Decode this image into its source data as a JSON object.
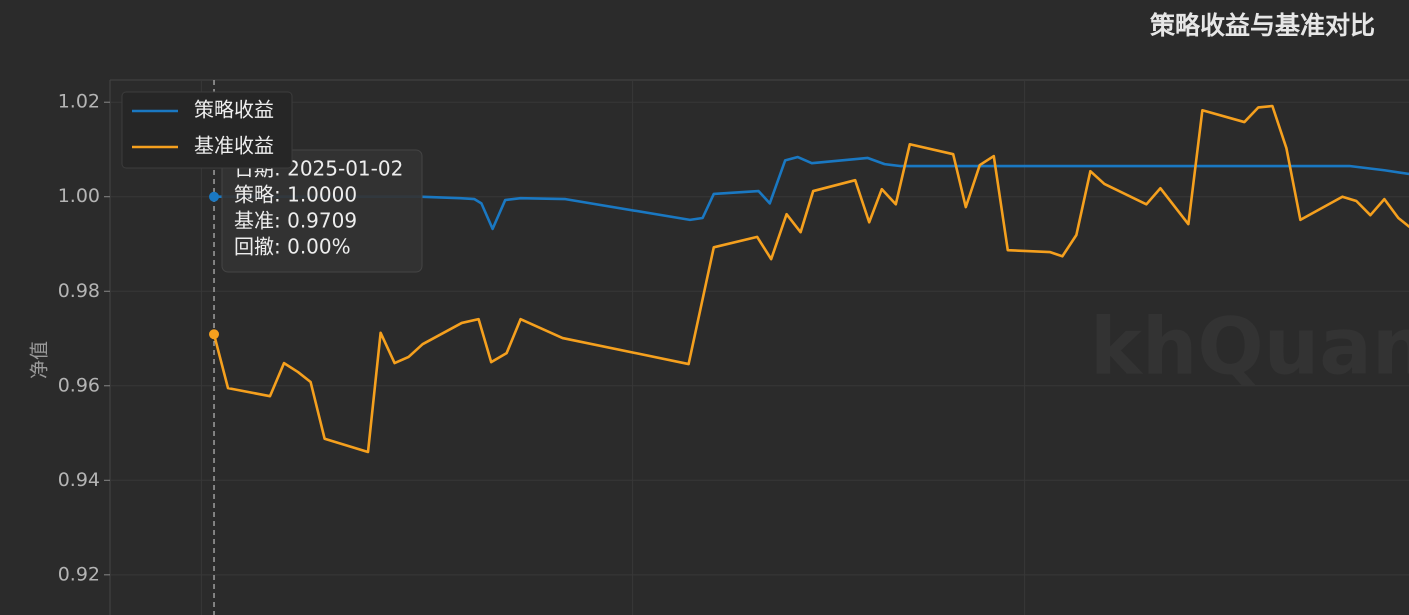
{
  "chart_data": {
    "type": "line",
    "title": "策略收益与基准对比",
    "ylabel": "净值",
    "watermark": "khQuant",
    "xlim": [
      -7.43,
      85.36
    ],
    "xticks": [
      -0.9,
      29.9,
      57.9
    ],
    "ylim": [
      0.9115,
      1.0247
    ],
    "yticks": [
      0.92,
      0.94,
      0.96,
      0.98,
      {
        "value": 1.0,
        "label": "1.00"
      },
      1.02
    ],
    "grid": true,
    "legend": "upper left",
    "tooltip": [
      "日期: 2025-01-02",
      "策略: 1.0000",
      "基准: 0.9709",
      "回撤: 0.00%"
    ],
    "series": [
      {
        "name": "策略收益",
        "color": "#1a78c2",
        "x": [
          0,
          14.7,
          17.6,
          18.6,
          19.1,
          19.9,
          20.8,
          21.9,
          25.1,
          34,
          34.9,
          35.7,
          38.9,
          39.7,
          40.8,
          41.7,
          42.7,
          46.7,
          47.9,
          49,
          81.1,
          83.6,
          85.4
        ],
        "values": [
          1.0,
          1.0,
          0.9997,
          0.9995,
          0.9986,
          0.9932,
          0.9993,
          0.9997,
          0.9995,
          0.9951,
          0.9955,
          1.0006,
          1.0012,
          0.9986,
          1.0077,
          1.0084,
          1.0071,
          1.0082,
          1.0069,
          1.0065,
          1.0065,
          1.0056,
          1.0048
        ]
      },
      {
        "name": "基准收益",
        "color": "#f5a01e",
        "x": [
          0,
          1,
          4,
          5,
          6,
          6.9,
          7.9,
          11,
          11.9,
          12.9,
          13.9,
          14.9,
          17.7,
          18.9,
          19.8,
          20.9,
          21.9,
          24.9,
          33.9,
          35.7,
          38.8,
          39.8,
          40.9,
          41.9,
          42.8,
          45.8,
          46.8,
          47.7,
          48.7,
          49.7,
          52.8,
          53.7,
          54.7,
          55.7,
          56.7,
          59.7,
          60.6,
          61.6,
          62.6,
          63.6,
          66.6,
          67.6,
          69.6,
          70.6,
          73.6,
          74.6,
          75.6,
          76.6,
          77.6,
          80.6,
          81.6,
          82.6,
          83.6,
          84.6,
          85.4
        ],
        "values": [
          0.9709,
          0.9595,
          0.9578,
          0.9648,
          0.9629,
          0.9608,
          0.9488,
          0.946,
          0.9712,
          0.9648,
          0.9661,
          0.9688,
          0.9733,
          0.9741,
          0.965,
          0.9669,
          0.9741,
          0.9701,
          0.9646,
          0.9893,
          0.9915,
          0.9868,
          0.9963,
          0.9925,
          1.0012,
          1.0035,
          0.9946,
          1.0016,
          0.9984,
          1.0111,
          1.009,
          0.9978,
          1.0067,
          1.0086,
          0.9887,
          0.9883,
          0.9874,
          0.9919,
          1.0054,
          1.0027,
          0.9984,
          1.0018,
          0.9942,
          1.0183,
          1.0158,
          1.0189,
          1.0192,
          1.0103,
          0.9951,
          1.0,
          0.9991,
          0.9961,
          0.9995,
          0.9955,
          0.9936
        ]
      }
    ]
  }
}
